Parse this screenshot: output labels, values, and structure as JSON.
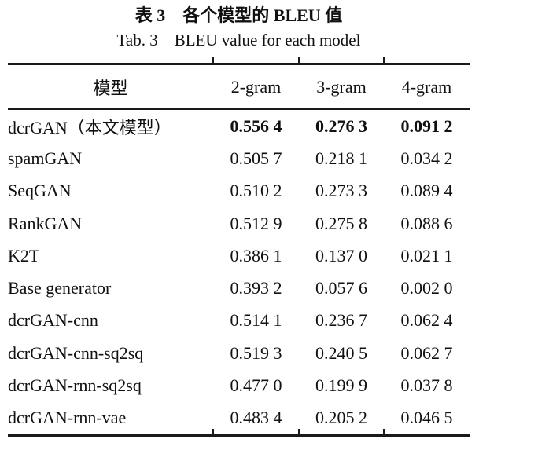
{
  "caption": {
    "title_zh": "表 3　各个模型的 BLEU 值",
    "title_en": "Tab. 3　BLEU value for each model"
  },
  "table": {
    "columns": [
      "模型",
      "2-gram",
      "3-gram",
      "4-gram"
    ],
    "rows": [
      {
        "model": "dcrGAN（本文模型）",
        "values": [
          "0.556 4",
          "0.276 3",
          "0.091 2"
        ],
        "highlight": true
      },
      {
        "model": "spamGAN",
        "values": [
          "0.505 7",
          "0.218 1",
          "0.034 2"
        ],
        "highlight": false
      },
      {
        "model": "SeqGAN",
        "values": [
          "0.510 2",
          "0.273 3",
          "0.089 4"
        ],
        "highlight": false
      },
      {
        "model": "RankGAN",
        "values": [
          "0.512 9",
          "0.275 8",
          "0.088 6"
        ],
        "highlight": false
      },
      {
        "model": "K2T",
        "values": [
          "0.386 1",
          "0.137 0",
          "0.021 1"
        ],
        "highlight": false
      },
      {
        "model": "Base generator",
        "values": [
          "0.393 2",
          "0.057 6",
          "0.002 0"
        ],
        "highlight": false
      },
      {
        "model": "dcrGAN-cnn",
        "values": [
          "0.514 1",
          "0.236 7",
          "0.062 4"
        ],
        "highlight": false
      },
      {
        "model": "dcrGAN-cnn-sq2sq",
        "values": [
          "0.519 3",
          "0.240 5",
          "0.062 7"
        ],
        "highlight": false
      },
      {
        "model": "dcrGAN-rnn-sq2sq",
        "values": [
          "0.477 0",
          "0.199 9",
          "0.037 8"
        ],
        "highlight": false
      },
      {
        "model": "dcrGAN-rnn-vae",
        "values": [
          "0.483 4",
          "0.205 2",
          "0.046 5"
        ],
        "highlight": false
      }
    ],
    "style": {
      "text_color": "#111111",
      "rule_color": "#1a1a1a",
      "background": "#ffffff"
    }
  }
}
